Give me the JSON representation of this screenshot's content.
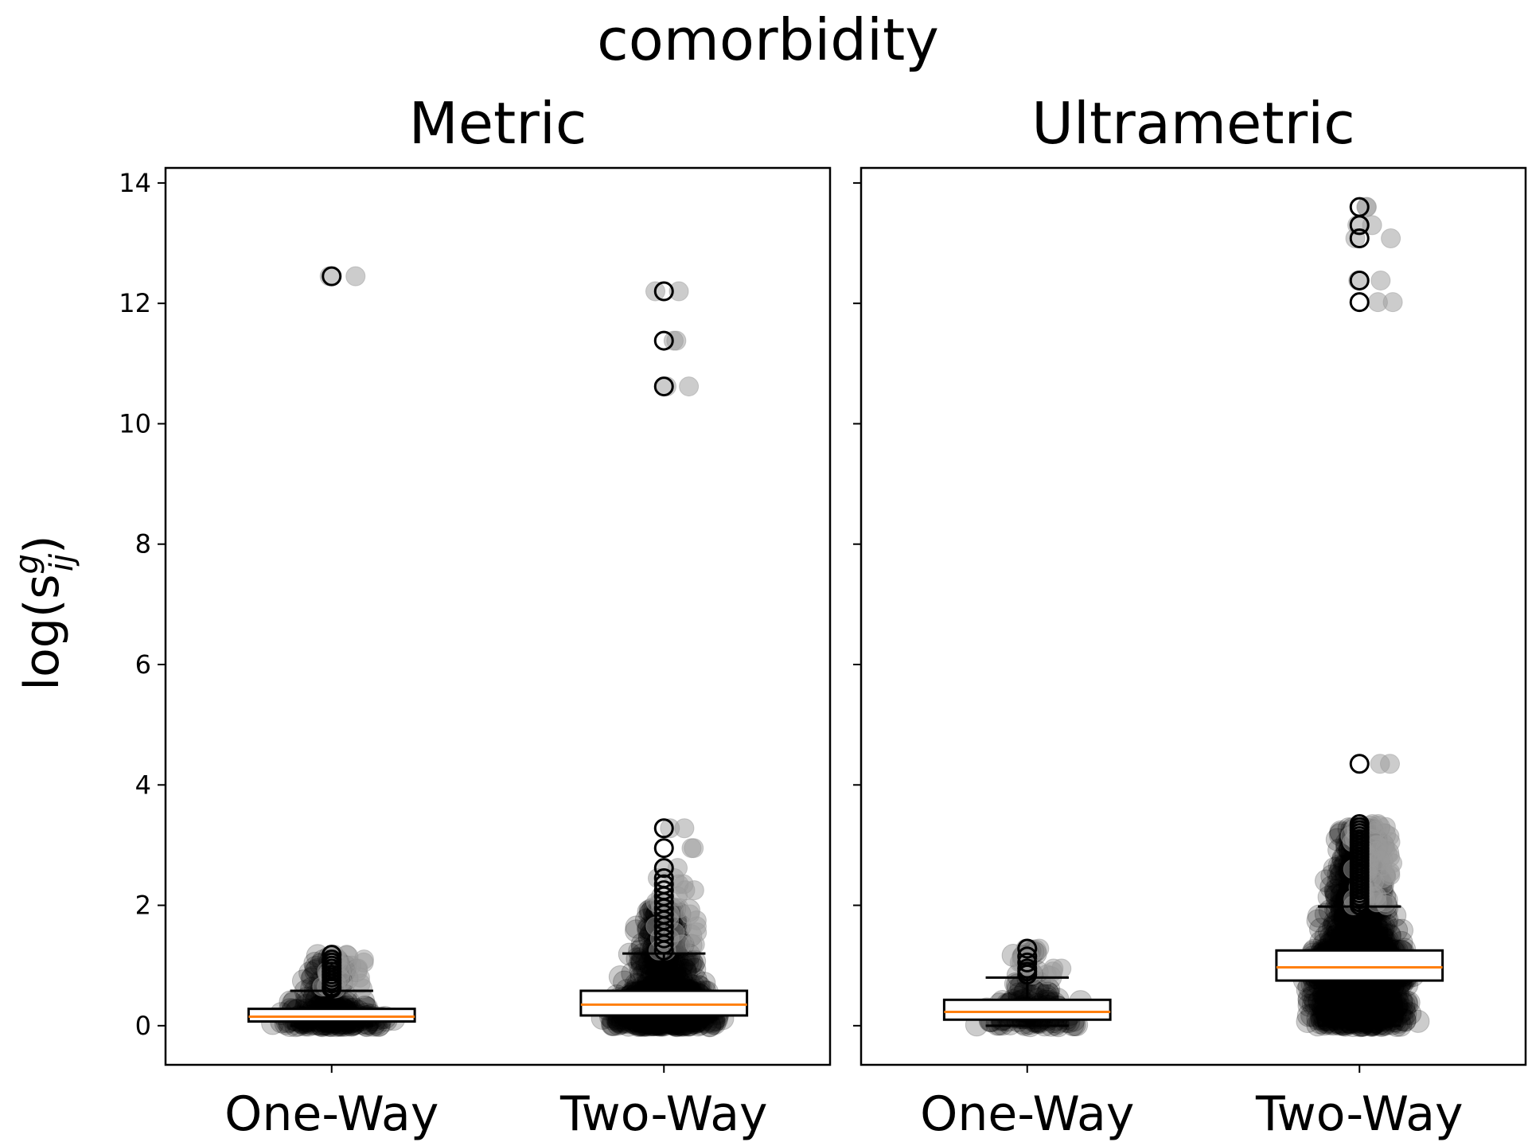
{
  "chart_data": {
    "type": "box",
    "title": "comorbidity",
    "ylabel": "log(s",
    "ylabel_sup": "g",
    "ylabel_sub": "ij",
    "ylabel_close": ")",
    "ylim": [
      -0.65,
      14.25
    ],
    "yticks": [
      0,
      2,
      4,
      6,
      8,
      10,
      12,
      14
    ],
    "categories": [
      "One-Way",
      "Two-Way"
    ],
    "colors": {
      "median": "#ff7f0e",
      "points": "#000000",
      "box": "#000000"
    },
    "panels": [
      {
        "title": "Metric",
        "boxes": [
          {
            "category": "One-Way",
            "q1": 0.07,
            "median": 0.15,
            "q3": 0.28,
            "whisker_low": 0.0,
            "whisker_high": 0.58,
            "outliers": [
              12.45,
              1.18,
              1.1,
              1.05,
              1.0,
              0.95,
              0.9,
              0.85,
              0.8,
              0.75,
              0.7,
              0.65,
              0.62
            ],
            "point_count": 300,
            "point_max": 1.2
          },
          {
            "category": "Two-Way",
            "q1": 0.17,
            "median": 0.35,
            "q3": 0.58,
            "whisker_low": 0.0,
            "whisker_high": 1.2,
            "outliers": [
              12.2,
              11.38,
              10.62,
              3.28,
              2.95,
              2.62,
              2.45,
              2.35,
              2.25,
              2.15,
              2.05,
              1.95,
              1.85,
              1.75,
              1.65,
              1.55,
              1.45,
              1.35,
              1.25
            ],
            "point_count": 1100,
            "point_max": 1.95
          }
        ]
      },
      {
        "title": "Ultrametric",
        "boxes": [
          {
            "category": "One-Way",
            "q1": 0.1,
            "median": 0.23,
            "q3": 0.43,
            "whisker_low": 0.0,
            "whisker_high": 0.8,
            "outliers": [
              1.28,
              1.15,
              1.05,
              0.95,
              0.9,
              0.85
            ],
            "point_count": 140,
            "point_max": 1.25
          },
          {
            "category": "Two-Way",
            "q1": 0.75,
            "median": 0.97,
            "q3": 1.25,
            "whisker_low": 0.0,
            "whisker_high": 1.98,
            "outliers": [
              13.6,
              13.3,
              13.08,
              12.38,
              12.02,
              4.35,
              3.35,
              3.3,
              3.25,
              3.2,
              3.15,
              3.1,
              3.05,
              3.0,
              2.95,
              2.9,
              2.85,
              2.8,
              2.75,
              2.7,
              2.65,
              2.6,
              2.55,
              2.5,
              2.45,
              2.4,
              2.35,
              2.3,
              2.25,
              2.2,
              2.15,
              2.1,
              2.05,
              2.0
            ],
            "point_count": 2400,
            "point_max": 3.3
          }
        ]
      }
    ]
  }
}
